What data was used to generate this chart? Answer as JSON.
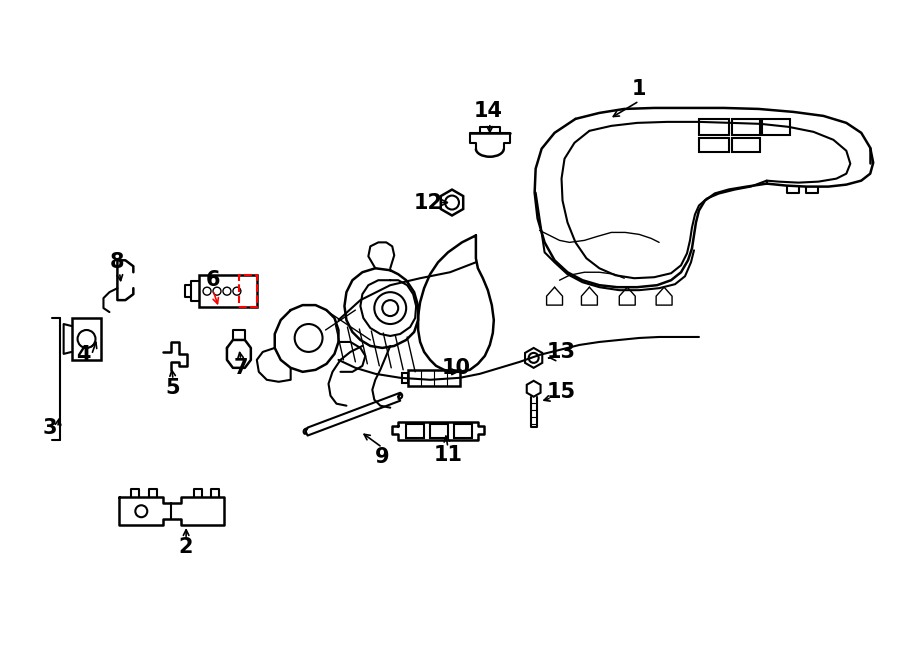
{
  "bg_color": "#ffffff",
  "line_color": "#000000",
  "highlight_color": "#ff0000",
  "figsize": [
    9.0,
    6.61
  ],
  "dpi": 100
}
